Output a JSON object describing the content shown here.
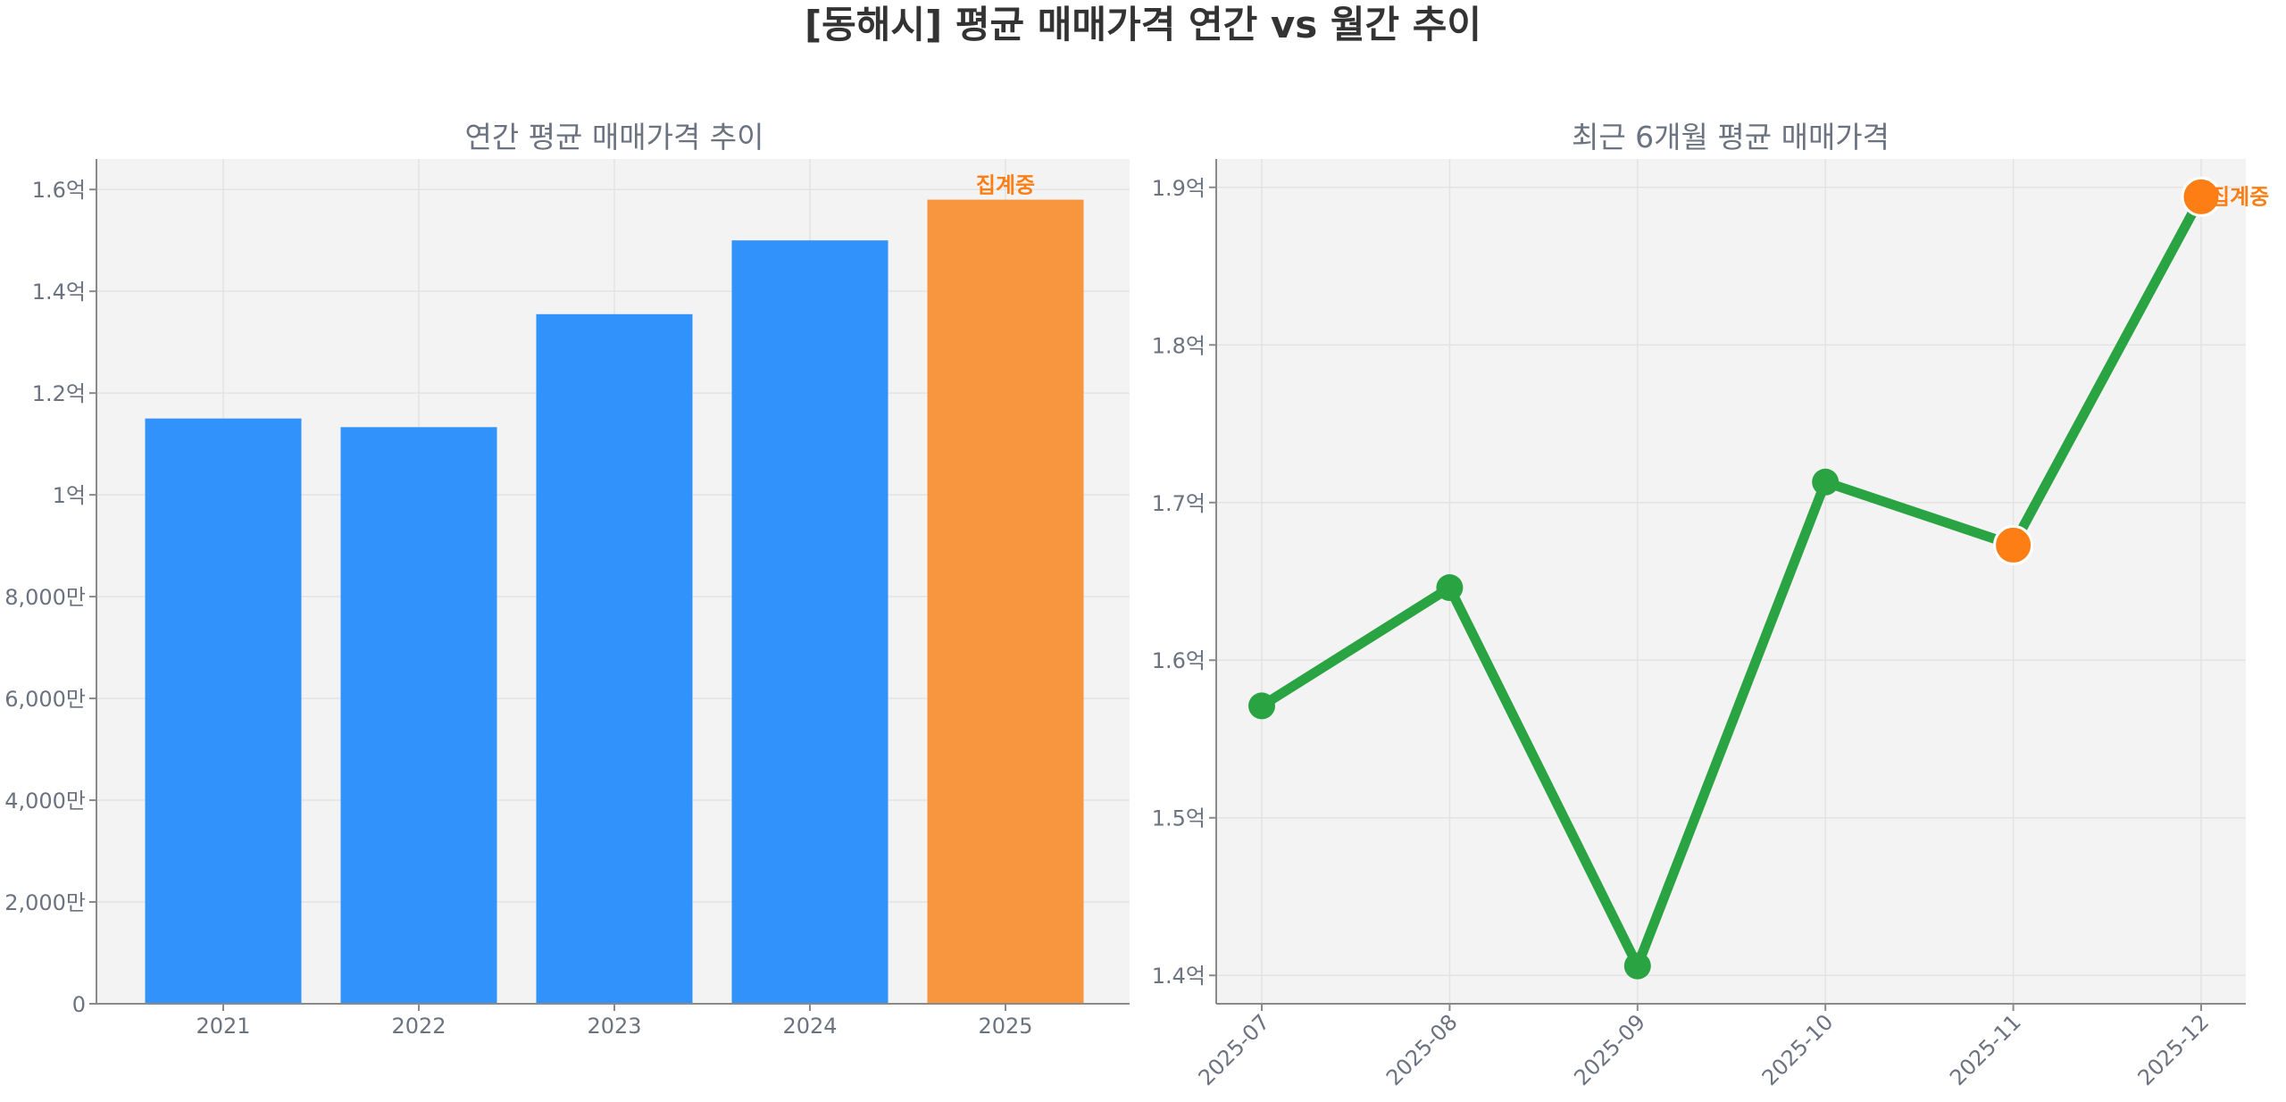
{
  "figure": {
    "title": "[동해시] 평균 매매가격 연간 vs 월간 추이"
  },
  "colors": {
    "bar": "#3092fa",
    "highlight": "#f7963f",
    "line": "#2aa442",
    "marker_hl": "#fd7e14",
    "tag": "#fd7e14",
    "plot_bg": "#f3f3f3"
  },
  "chart_data": [
    {
      "type": "bar",
      "title": "연간 평균 매매가격 추이",
      "xlabel": "",
      "ylabel": "",
      "categories": [
        "2021",
        "2022",
        "2023",
        "2024",
        "2025"
      ],
      "values": [
        11500,
        11330,
        13550,
        15000,
        15800
      ],
      "unit": "만원",
      "ylim": [
        0,
        16600
      ],
      "yticks": [
        0,
        2000,
        4000,
        6000,
        8000,
        10000,
        12000,
        14000,
        16000
      ],
      "ytick_labels": [
        "0",
        "2,000만",
        "4,000만",
        "6,000만",
        "8,000만",
        "1억",
        "1.2억",
        "1.4억",
        "1.6억"
      ],
      "highlight_index": 4,
      "annotation": "집계중",
      "grid": true
    },
    {
      "type": "line",
      "title": "최근 6개월 평균 매매가격",
      "xlabel": "",
      "ylabel": "",
      "x": [
        "2025-07",
        "2025-08",
        "2025-09",
        "2025-10",
        "2025-11",
        "2025-12"
      ],
      "values": [
        15710,
        16460,
        14060,
        17130,
        16730,
        18940
      ],
      "unit": "만원",
      "ylim": [
        13820,
        19180
      ],
      "yticks": [
        14000,
        15000,
        16000,
        17000,
        18000,
        19000
      ],
      "ytick_labels": [
        "1.4억",
        "1.5억",
        "1.6억",
        "1.7억",
        "1.8억",
        "1.9억"
      ],
      "highlight_indices": [
        4,
        5
      ],
      "annotation": "집계중",
      "grid": true
    }
  ]
}
